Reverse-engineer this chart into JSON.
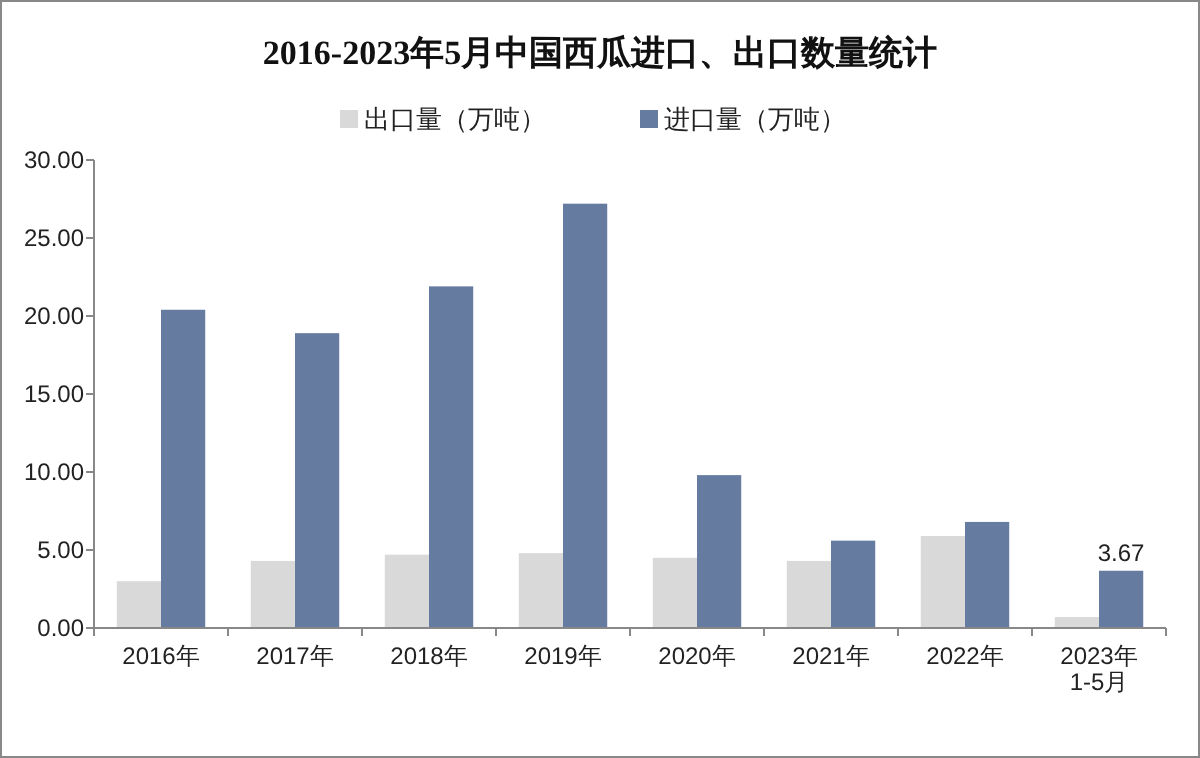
{
  "chart_data": {
    "type": "bar",
    "title": "2016-2023年5月中国西瓜进口、出口数量统计",
    "categories": [
      "2016年",
      "2017年",
      "2018年",
      "2019年",
      "2020年",
      "2021年",
      "2022年",
      "2023年\n1-5月"
    ],
    "series": [
      {
        "name": "出口量（万吨）",
        "color": "#d9d9d9",
        "values": [
          3.0,
          4.3,
          4.7,
          4.8,
          4.5,
          4.3,
          5.9,
          0.7
        ]
      },
      {
        "name": "进口量（万吨）",
        "color": "#667ba0",
        "values": [
          20.4,
          18.9,
          21.9,
          27.2,
          9.8,
          5.6,
          6.8,
          3.67
        ],
        "value_labels": [
          null,
          null,
          null,
          null,
          null,
          null,
          null,
          "3.67"
        ]
      }
    ],
    "ylim": [
      0,
      30
    ],
    "yticks": [
      {
        "value": 0,
        "label": "0.00"
      },
      {
        "value": 5,
        "label": "5.00"
      },
      {
        "value": 10,
        "label": "10.00"
      },
      {
        "value": 15,
        "label": "15.00"
      },
      {
        "value": 20,
        "label": "20.00"
      },
      {
        "value": 25,
        "label": "25.00"
      },
      {
        "value": 30,
        "label": "30.00"
      }
    ],
    "grid": false,
    "legend": "top"
  }
}
